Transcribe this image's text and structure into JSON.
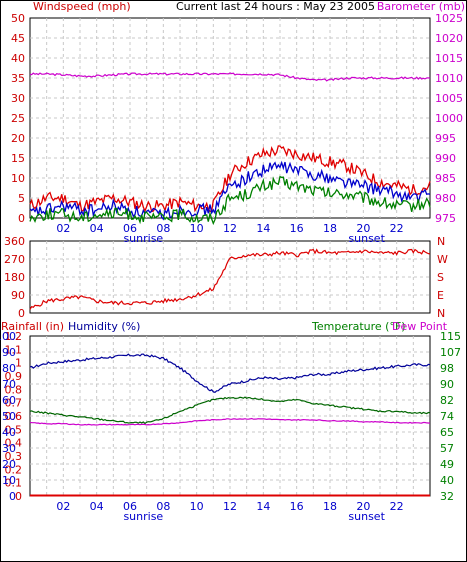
{
  "header": {
    "left_label": "Windspeed (mph)",
    "center_label": "Current last 24 hours : May 23 2005",
    "right_label": "Barometer (mb)"
  },
  "shared_x": {
    "ticks": [
      "02",
      "04",
      "06",
      "08",
      "10",
      "12",
      "14",
      "16",
      "18",
      "20",
      "22"
    ],
    "sunrise_label": "sunrise",
    "sunset_label": "sunset"
  },
  "colors": {
    "wind_gust": "#e00000",
    "wind_avg": "#0000cc",
    "wind_low": "#008000",
    "barometer": "#cc00cc",
    "direction": "#dd0000",
    "humidity": "#000099",
    "temperature": "#006600",
    "dew_point": "#cc00cc",
    "rainfall": "#dd0000",
    "axis_blue": "#0000cc",
    "axis_red": "#cc0000",
    "axis_green": "#008000",
    "axis_magenta": "#cc00cc",
    "grid": "#c8c8c8"
  },
  "chart_data": [
    {
      "type": "line",
      "ylabel": "Windspeed (mph)",
      "ylabel_right": "Barometer (mb)",
      "ylim": [
        0,
        50
      ],
      "ylim_right": [
        975,
        1025
      ],
      "y_ticks": [
        "50",
        "45",
        "40",
        "35",
        "30",
        "25",
        "20",
        "15",
        "10",
        "5",
        "0"
      ],
      "y_ticks_right": [
        "1025",
        "1020",
        "1015",
        "1010",
        "1005",
        "1000",
        "995",
        "990",
        "985",
        "980",
        "975"
      ],
      "x_hours": [
        0,
        1,
        2,
        3,
        4,
        5,
        6,
        7,
        8,
        9,
        10,
        11,
        12,
        13,
        14,
        15,
        16,
        17,
        18,
        19,
        20,
        21,
        22,
        23,
        24
      ],
      "series": [
        {
          "axis": "left",
          "values": [
            3,
            5,
            5,
            3,
            4,
            5,
            4,
            3,
            3,
            4,
            3,
            3,
            11,
            14,
            16,
            17,
            16,
            15,
            14,
            13,
            11,
            9,
            8,
            7,
            8
          ]
        },
        {
          "axis": "left",
          "values": [
            1,
            2,
            3,
            2,
            2,
            3,
            2,
            1,
            1,
            2,
            2,
            2,
            8,
            10,
            12,
            13,
            12,
            11,
            10,
            9,
            8,
            7,
            6,
            5,
            6
          ]
        },
        {
          "axis": "left",
          "values": [
            0,
            1,
            1,
            0,
            1,
            1,
            1,
            0,
            0,
            1,
            0,
            0,
            5,
            6,
            8,
            9,
            8,
            7,
            6,
            6,
            5,
            4,
            3,
            3,
            4
          ]
        },
        {
          "axis": "right",
          "values": [
            1011,
            1011,
            1010.8,
            1010.5,
            1010.5,
            1010.8,
            1011,
            1011,
            1011,
            1011,
            1011,
            1011,
            1011,
            1011,
            1011,
            1010.8,
            1010,
            1009.5,
            1009.5,
            1010,
            1010,
            1010,
            1010,
            1010,
            1010
          ]
        }
      ]
    },
    {
      "type": "line",
      "ylim": [
        0,
        360
      ],
      "y_ticks": [
        "360",
        "270",
        "180",
        "90",
        "0"
      ],
      "y_ticks_right": [
        "N",
        "W",
        "S",
        "E",
        "N"
      ],
      "x_hours": [
        0,
        1,
        2,
        3,
        4,
        5,
        6,
        7,
        8,
        9,
        10,
        11,
        12,
        13,
        14,
        15,
        16,
        17,
        18,
        19,
        20,
        21,
        22,
        23,
        24
      ],
      "series": [
        {
          "values": [
            20,
            60,
            70,
            80,
            60,
            50,
            50,
            50,
            60,
            70,
            90,
            120,
            270,
            290,
            290,
            300,
            290,
            310,
            300,
            300,
            310,
            300,
            300,
            310,
            300
          ]
        }
      ]
    },
    {
      "type": "line",
      "header": {
        "rain_label": "Rainfall (in)",
        "humidity_label": "Humidity (%)",
        "temp_label": "Temperature (°F)",
        "dew_label": "Dew Point"
      },
      "y_ticks_rain": [
        "1.2",
        "1.1",
        "1",
        "0.9",
        "0.8",
        "0.7",
        "0.6",
        "0.5",
        "0.4",
        "0.3",
        "0.2",
        "0.1",
        "0"
      ],
      "y_ticks_humidity": [
        "100",
        "90",
        "80",
        "70",
        "60",
        "50",
        "40",
        "30",
        "20",
        "10",
        "0"
      ],
      "y_ticks_temp": [
        "115",
        "107",
        "98",
        "90",
        "82",
        "74",
        "65",
        "57",
        "49",
        "40",
        "32"
      ],
      "ylim_humidity": [
        0,
        100
      ],
      "ylim_temp": [
        32,
        115
      ],
      "x_hours": [
        0,
        1,
        2,
        3,
        4,
        5,
        6,
        7,
        8,
        9,
        10,
        11,
        12,
        13,
        14,
        15,
        16,
        17,
        18,
        19,
        20,
        21,
        22,
        23,
        24
      ],
      "series": [
        {
          "axis": "humidity",
          "values": [
            80,
            83,
            84,
            85,
            86,
            87,
            88,
            88,
            86,
            80,
            72,
            65,
            70,
            72,
            74,
            73,
            74,
            76,
            76,
            78,
            79,
            80,
            81,
            82,
            82
          ]
        },
        {
          "axis": "temp",
          "values": [
            76,
            75,
            74,
            73,
            72,
            71,
            70,
            70,
            72,
            76,
            79,
            82,
            83,
            83,
            82,
            81,
            82,
            80,
            79,
            78,
            77,
            76,
            76,
            75,
            75
          ]
        },
        {
          "axis": "temp",
          "values": [
            70,
            69.5,
            69.5,
            69,
            69,
            69,
            69,
            69,
            69.5,
            70,
            71,
            71.5,
            72,
            72,
            72,
            71.5,
            71.5,
            71.5,
            71,
            71,
            70.5,
            70.5,
            70,
            70,
            70
          ]
        },
        {
          "axis": "rain",
          "values": [
            0,
            0,
            0,
            0,
            0,
            0,
            0,
            0,
            0,
            0,
            0,
            0,
            0,
            0,
            0,
            0,
            0,
            0,
            0,
            0,
            0,
            0,
            0,
            0,
            0
          ]
        }
      ]
    }
  ]
}
